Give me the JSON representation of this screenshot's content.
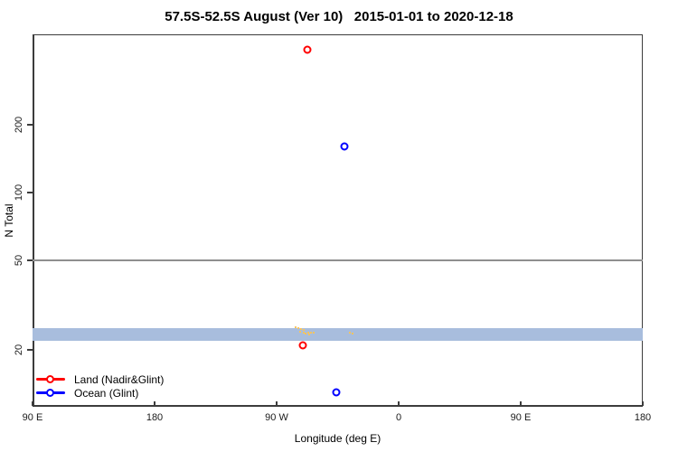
{
  "chart_data": {
    "type": "scatter",
    "title": "57.5S-52.5S August (Ver 10)   2015-01-01 to 2020-12-18",
    "xlabel": "Longitude (deg E)",
    "ylabel": "N Total",
    "x_axis": {
      "domain": [
        90,
        540
      ],
      "ticks": [
        90,
        180,
        270,
        360,
        450,
        540
      ],
      "tick_labels": [
        "90 E",
        "180",
        "90 W",
        "0",
        "90 E",
        "180"
      ]
    },
    "y_axis": {
      "scale": "log",
      "domain": [
        11.2,
        504
      ],
      "ticks": [
        20,
        50,
        100,
        200
      ],
      "tick_labels": [
        "20",
        "50",
        "100",
        "200"
      ]
    },
    "grid": false,
    "legend_position": "bottom-left",
    "reference_line": {
      "y": 50,
      "color": "#8f8f8f"
    },
    "band": {
      "y_from": 22,
      "y_to": 25,
      "color": "#a8bddd"
    },
    "series": [
      {
        "key": "land",
        "name": "Land (Nadir&Glint)",
        "color": "#ff0000",
        "marker": "open-circle",
        "points": [
          {
            "lon": 292.7,
            "n": 430
          },
          {
            "lon": 289.3,
            "n": 21
          }
        ]
      },
      {
        "key": "ocean",
        "name": "Ocean (Glint)",
        "color": "#0000ff",
        "marker": "open-circle",
        "points": [
          {
            "lon": 320,
            "n": 160
          },
          {
            "lon": 314,
            "n": 13
          }
        ]
      }
    ],
    "small_marks": {
      "color": "#f6c45f",
      "points": [
        [
          284,
          25.2
        ],
        [
          286,
          25.0
        ],
        [
          288,
          24.7
        ],
        [
          290,
          24.5
        ],
        [
          287,
          24.2
        ],
        [
          290,
          24.0
        ],
        [
          293,
          24.0
        ],
        [
          295,
          23.8
        ],
        [
          291,
          23.6
        ],
        [
          294,
          23.4
        ],
        [
          297,
          23.8
        ],
        [
          324,
          24.0
        ],
        [
          326,
          23.6
        ]
      ]
    }
  },
  "legend": {
    "items": [
      {
        "label": "Land (Nadir&Glint)",
        "color": "#ff0000"
      },
      {
        "label": "Ocean (Glint)",
        "color": "#0000ff"
      }
    ]
  },
  "colors": {
    "axis": "#3c3c3c",
    "text": "#000000",
    "band": "#a8bddd",
    "reference_line": "#8f8f8f",
    "small_marks": "#f6c45f"
  }
}
